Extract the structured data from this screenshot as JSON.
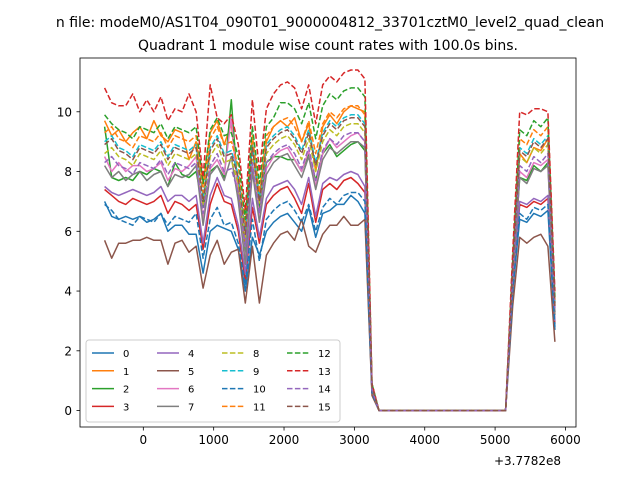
{
  "chart_data": {
    "type": "line",
    "suptitle": "n file: modeM0/AS1T04_090T01_9000004812_33701cztM0_level2_quad_clean",
    "title": "Quadrant 1 module wise count rates with 100.0s bins.",
    "xlabel": "",
    "ylabel": "",
    "x_offset_label": "+3.7782e8",
    "xlim": [
      -900,
      6150
    ],
    "ylim": [
      -0.55,
      11.8
    ],
    "xticks": [
      0,
      1000,
      2000,
      3000,
      4000,
      5000,
      6000
    ],
    "xtick_labels": [
      "0",
      "1000",
      "2000",
      "3000",
      "4000",
      "5000",
      "6000"
    ],
    "yticks": [
      0,
      2,
      4,
      6,
      8,
      10
    ],
    "ytick_labels": [
      "0",
      "2",
      "4",
      "6",
      "8",
      "10"
    ],
    "grid": false,
    "legend_position": "lower-left",
    "legend_columns": 4,
    "x": [
      -550,
      -450,
      -350,
      -250,
      -150,
      -50,
      50,
      150,
      250,
      350,
      450,
      550,
      650,
      750,
      850,
      950,
      1050,
      1150,
      1250,
      1350,
      1450,
      1550,
      1650,
      1750,
      1850,
      1950,
      2050,
      2150,
      2250,
      2350,
      2450,
      2550,
      2650,
      2750,
      2850,
      2950,
      3050,
      3150,
      3250,
      3350,
      3450,
      3550,
      3650,
      3750,
      3850,
      3950,
      4050,
      4150,
      4250,
      4350,
      4450,
      4550,
      4650,
      4750,
      4850,
      4950,
      5050,
      5150,
      5250,
      5350,
      5450,
      5550,
      5650,
      5750,
      5850
    ],
    "series": [
      {
        "name": "0",
        "color": "#1f77b4",
        "dash": "solid",
        "values": [
          7.0,
          6.5,
          6.4,
          6.5,
          6.4,
          6.5,
          6.3,
          6.4,
          6.6,
          6.0,
          6.2,
          6.2,
          5.9,
          5.9,
          4.6,
          6.0,
          6.2,
          6.1,
          6.0,
          5.4,
          4.0,
          5.8,
          5.2,
          6.0,
          6.3,
          6.5,
          6.6,
          6.3,
          6.0,
          6.8,
          5.8,
          6.6,
          6.7,
          6.9,
          6.9,
          7.2,
          7.0,
          6.6,
          0.6,
          0.0,
          0.0,
          0.0,
          0.0,
          0.0,
          0.0,
          0.0,
          0.0,
          0.0,
          0.0,
          0.0,
          0.0,
          0.0,
          0.0,
          0.0,
          0.0,
          0.0,
          0.0,
          0.0,
          4.0,
          6.4,
          6.3,
          6.6,
          6.5,
          6.7,
          2.7
        ]
      },
      {
        "name": "1",
        "color": "#ff7f0e",
        "dash": "solid",
        "values": [
          9.7,
          9.2,
          9.4,
          9.0,
          9.3,
          9.5,
          9.1,
          9.7,
          9.2,
          9.0,
          9.4,
          9.3,
          8.4,
          9.0,
          7.6,
          9.3,
          9.7,
          8.9,
          9.6,
          7.4,
          5.5,
          9.0,
          7.2,
          9.0,
          9.5,
          9.7,
          9.5,
          9.8,
          9.0,
          9.6,
          8.0,
          9.5,
          9.9,
          9.6,
          10.0,
          10.2,
          10.1,
          10.0,
          0.8,
          0.0,
          0.0,
          0.0,
          0.0,
          0.0,
          0.0,
          0.0,
          0.0,
          0.0,
          0.0,
          0.0,
          0.0,
          0.0,
          0.0,
          0.0,
          0.0,
          0.0,
          0.0,
          0.0,
          4.6,
          8.6,
          8.3,
          8.8,
          8.7,
          9.1,
          3.6
        ]
      },
      {
        "name": "2",
        "color": "#2ca02c",
        "dash": "solid",
        "values": [
          9.5,
          7.8,
          7.7,
          7.8,
          7.7,
          8.0,
          7.9,
          8.1,
          8.0,
          7.5,
          8.3,
          7.9,
          7.8,
          8.0,
          6.8,
          8.0,
          8.2,
          7.8,
          10.4,
          7.2,
          5.2,
          8.1,
          6.8,
          8.3,
          8.5,
          8.5,
          8.4,
          8.4,
          8.0,
          8.6,
          7.7,
          8.6,
          8.9,
          8.5,
          8.7,
          8.9,
          9.0,
          8.7,
          0.7,
          0.0,
          0.0,
          0.0,
          0.0,
          0.0,
          0.0,
          0.0,
          0.0,
          0.0,
          0.0,
          0.0,
          0.0,
          0.0,
          0.0,
          0.0,
          0.0,
          0.0,
          0.0,
          0.0,
          4.4,
          7.8,
          7.7,
          8.2,
          8.0,
          8.3,
          3.3
        ]
      },
      {
        "name": "3",
        "color": "#d62728",
        "dash": "solid",
        "values": [
          7.4,
          7.2,
          7.0,
          6.9,
          7.1,
          7.0,
          6.9,
          7.0,
          7.2,
          6.6,
          7.0,
          6.9,
          6.7,
          6.9,
          5.4,
          6.9,
          7.6,
          7.0,
          6.9,
          6.0,
          4.3,
          6.8,
          5.6,
          6.9,
          7.2,
          7.4,
          7.5,
          7.1,
          6.6,
          7.6,
          6.3,
          7.4,
          7.6,
          7.4,
          7.7,
          7.8,
          7.6,
          7.3,
          0.6,
          0.0,
          0.0,
          0.0,
          0.0,
          0.0,
          0.0,
          0.0,
          0.0,
          0.0,
          0.0,
          0.0,
          0.0,
          0.0,
          0.0,
          0.0,
          0.0,
          0.0,
          0.0,
          0.0,
          4.1,
          6.9,
          6.8,
          7.0,
          6.9,
          7.1,
          2.9
        ]
      },
      {
        "name": "4",
        "color": "#9467bd",
        "dash": "solid",
        "values": [
          7.5,
          7.3,
          7.2,
          7.3,
          7.4,
          7.3,
          7.2,
          7.3,
          7.5,
          7.0,
          7.2,
          7.2,
          7.0,
          7.2,
          5.6,
          7.2,
          7.8,
          7.2,
          7.1,
          6.2,
          4.6,
          7.1,
          5.8,
          7.1,
          7.5,
          7.6,
          7.7,
          7.4,
          6.9,
          7.8,
          6.5,
          7.6,
          7.8,
          7.7,
          7.9,
          8.0,
          7.9,
          7.5,
          0.6,
          0.0,
          0.0,
          0.0,
          0.0,
          0.0,
          0.0,
          0.0,
          0.0,
          0.0,
          0.0,
          0.0,
          0.0,
          0.0,
          0.0,
          0.0,
          0.0,
          0.0,
          0.0,
          0.0,
          4.2,
          7.0,
          6.9,
          7.1,
          7.0,
          7.2,
          3.0
        ]
      },
      {
        "name": "5",
        "color": "#8c564b",
        "dash": "solid",
        "values": [
          5.7,
          5.1,
          5.6,
          5.6,
          5.7,
          5.7,
          5.8,
          5.7,
          5.7,
          4.9,
          5.6,
          5.7,
          5.3,
          5.5,
          4.1,
          5.2,
          5.7,
          4.9,
          5.3,
          5.4,
          3.6,
          5.5,
          3.6,
          5.2,
          5.6,
          5.9,
          6.0,
          5.7,
          6.4,
          5.5,
          5.3,
          5.9,
          6.2,
          6.2,
          6.5,
          6.2,
          6.2,
          6.4,
          0.5,
          0.0,
          0.0,
          0.0,
          0.0,
          0.0,
          0.0,
          0.0,
          0.0,
          0.0,
          0.0,
          0.0,
          0.0,
          0.0,
          0.0,
          0.0,
          0.0,
          0.0,
          0.0,
          0.0,
          3.5,
          5.8,
          5.6,
          5.8,
          5.9,
          5.5,
          2.3
        ]
      },
      {
        "name": "6",
        "color": "#e377c2",
        "dash": "solid",
        "values": [
          8.5,
          8.0,
          8.3,
          8.0,
          8.2,
          8.2,
          8.0,
          8.1,
          8.3,
          7.7,
          8.1,
          8.0,
          8.2,
          8.5,
          6.4,
          8.1,
          8.4,
          7.9,
          9.8,
          7.1,
          5.0,
          8.3,
          6.5,
          8.1,
          8.5,
          8.7,
          8.8,
          8.4,
          8.0,
          8.7,
          7.5,
          8.6,
          9.1,
          8.8,
          9.0,
          9.2,
          9.3,
          9.0,
          0.7,
          0.0,
          0.0,
          0.0,
          0.0,
          0.0,
          0.0,
          0.0,
          0.0,
          0.0,
          0.0,
          0.0,
          0.0,
          0.0,
          0.0,
          0.0,
          0.0,
          0.0,
          0.0,
          0.0,
          4.4,
          8.0,
          7.8,
          8.3,
          8.2,
          8.4,
          3.3
        ]
      },
      {
        "name": "7",
        "color": "#7f7f7f",
        "dash": "solid",
        "values": [
          8.2,
          7.8,
          8.0,
          7.7,
          7.9,
          8.0,
          7.7,
          7.9,
          8.0,
          7.5,
          7.9,
          7.8,
          7.9,
          8.2,
          6.2,
          7.9,
          8.2,
          7.7,
          8.5,
          7.0,
          4.9,
          8.0,
          6.3,
          7.9,
          8.3,
          8.5,
          8.6,
          8.2,
          7.8,
          8.5,
          7.4,
          8.4,
          8.8,
          8.6,
          8.8,
          9.0,
          9.0,
          8.8,
          0.7,
          0.0,
          0.0,
          0.0,
          0.0,
          0.0,
          0.0,
          0.0,
          0.0,
          0.0,
          0.0,
          0.0,
          0.0,
          0.0,
          0.0,
          0.0,
          0.0,
          0.0,
          0.0,
          0.0,
          4.3,
          7.8,
          7.6,
          8.1,
          8.0,
          8.2,
          3.2
        ]
      },
      {
        "name": "8",
        "color": "#bcbd22",
        "dash": "dashed",
        "values": [
          8.6,
          8.8,
          8.5,
          8.4,
          8.2,
          8.6,
          8.5,
          8.4,
          8.7,
          8.2,
          8.6,
          8.5,
          8.4,
          8.6,
          6.9,
          8.5,
          8.9,
          8.3,
          8.4,
          7.6,
          5.8,
          8.6,
          6.9,
          8.6,
          8.9,
          9.1,
          9.2,
          8.9,
          8.4,
          9.1,
          8.0,
          9.0,
          9.4,
          9.2,
          9.5,
          9.6,
          9.6,
          9.3,
          0.8,
          0.0,
          0.0,
          0.0,
          0.0,
          0.0,
          0.0,
          0.0,
          0.0,
          0.0,
          0.0,
          0.0,
          0.0,
          0.0,
          0.0,
          0.0,
          0.0,
          0.0,
          0.0,
          0.0,
          4.6,
          8.5,
          8.3,
          8.8,
          8.6,
          8.9,
          3.5
        ]
      },
      {
        "name": "9",
        "color": "#17becf",
        "dash": "dashed",
        "values": [
          9.0,
          9.2,
          8.8,
          8.7,
          8.5,
          8.9,
          8.8,
          8.7,
          9.0,
          8.5,
          8.9,
          8.8,
          8.7,
          8.9,
          7.1,
          8.8,
          9.2,
          8.6,
          8.7,
          7.9,
          6.0,
          8.9,
          7.1,
          8.9,
          9.2,
          9.4,
          9.5,
          9.2,
          8.7,
          9.4,
          8.3,
          9.3,
          9.7,
          9.5,
          9.8,
          9.9,
          9.9,
          9.6,
          0.8,
          0.0,
          0.0,
          0.0,
          0.0,
          0.0,
          0.0,
          0.0,
          0.0,
          0.0,
          0.0,
          0.0,
          0.0,
          0.0,
          0.0,
          0.0,
          0.0,
          0.0,
          0.0,
          0.0,
          4.7,
          8.8,
          8.6,
          9.1,
          8.9,
          9.2,
          3.6
        ]
      },
      {
        "name": "10",
        "color": "#1f77b4",
        "dash": "dashed",
        "values": [
          6.9,
          6.7,
          6.4,
          6.3,
          6.2,
          6.5,
          6.4,
          6.3,
          6.6,
          6.2,
          6.5,
          6.4,
          6.3,
          6.6,
          5.1,
          6.4,
          6.8,
          6.2,
          6.3,
          5.6,
          4.2,
          6.4,
          5.0,
          6.4,
          6.7,
          6.9,
          7.0,
          6.7,
          6.3,
          6.9,
          6.0,
          6.8,
          7.1,
          6.9,
          7.2,
          7.3,
          7.3,
          7.0,
          0.6,
          0.0,
          0.0,
          0.0,
          0.0,
          0.0,
          0.0,
          0.0,
          0.0,
          0.0,
          0.0,
          0.0,
          0.0,
          0.0,
          0.0,
          0.0,
          0.0,
          0.0,
          0.0,
          0.0,
          4.0,
          6.6,
          6.4,
          6.8,
          6.7,
          6.9,
          2.8
        ]
      },
      {
        "name": "11",
        "color": "#ff7f0e",
        "dash": "dashed",
        "values": [
          9.3,
          9.5,
          9.1,
          9.0,
          8.8,
          9.2,
          9.1,
          9.0,
          9.3,
          8.8,
          9.2,
          9.1,
          9.0,
          9.2,
          7.3,
          9.1,
          9.5,
          8.9,
          9.0,
          8.2,
          6.2,
          9.2,
          7.3,
          9.2,
          9.5,
          9.7,
          9.8,
          9.5,
          9.0,
          9.7,
          8.6,
          9.6,
          10.0,
          9.8,
          10.1,
          10.2,
          10.2,
          9.9,
          0.8,
          0.0,
          0.0,
          0.0,
          0.0,
          0.0,
          0.0,
          0.0,
          0.0,
          0.0,
          0.0,
          0.0,
          0.0,
          0.0,
          0.0,
          0.0,
          0.0,
          0.0,
          0.0,
          0.0,
          4.8,
          9.1,
          8.9,
          9.4,
          9.2,
          9.5,
          3.7
        ]
      },
      {
        "name": "12",
        "color": "#2ca02c",
        "dash": "dashed",
        "values": [
          9.9,
          9.6,
          9.4,
          9.3,
          9.1,
          9.5,
          9.4,
          9.3,
          9.6,
          9.1,
          9.5,
          9.4,
          9.3,
          9.5,
          7.6,
          9.4,
          9.8,
          9.2,
          9.3,
          8.5,
          6.4,
          9.5,
          7.6,
          9.5,
          9.8,
          10.3,
          10.3,
          10.1,
          9.6,
          10.3,
          9.1,
          10.2,
          10.6,
          10.4,
          10.7,
          10.8,
          10.8,
          10.5,
          0.9,
          0.0,
          0.0,
          0.0,
          0.0,
          0.0,
          0.0,
          0.0,
          0.0,
          0.0,
          0.0,
          0.0,
          0.0,
          0.0,
          0.0,
          0.0,
          0.0,
          0.0,
          0.0,
          0.0,
          5.0,
          9.4,
          9.2,
          9.7,
          9.5,
          9.8,
          3.8
        ]
      },
      {
        "name": "13",
        "color": "#d62728",
        "dash": "dashed",
        "values": [
          10.8,
          10.3,
          10.2,
          10.2,
          10.6,
          10.0,
          10.4,
          10.0,
          10.5,
          9.7,
          10.1,
          10.0,
          10.6,
          10.0,
          7.8,
          10.9,
          9.8,
          9.6,
          9.9,
          8.9,
          6.7,
          10.4,
          8.0,
          10.1,
          10.6,
          10.9,
          11.0,
          10.8,
          10.1,
          10.9,
          9.6,
          10.9,
          11.2,
          11.0,
          11.3,
          11.4,
          11.4,
          11.1,
          0.9,
          0.0,
          0.0,
          0.0,
          0.0,
          0.0,
          0.0,
          0.0,
          0.0,
          0.0,
          0.0,
          0.0,
          0.0,
          0.0,
          0.0,
          0.0,
          0.0,
          0.0,
          0.0,
          0.0,
          5.3,
          10.0,
          9.9,
          10.1,
          10.1,
          10.0,
          4.0
        ]
      },
      {
        "name": "14",
        "color": "#9467bd",
        "dash": "dashed",
        "values": [
          8.3,
          8.5,
          8.2,
          8.1,
          7.9,
          8.3,
          8.2,
          8.1,
          8.4,
          7.9,
          8.3,
          8.2,
          8.1,
          8.3,
          6.6,
          8.2,
          8.6,
          8.0,
          8.1,
          7.3,
          5.5,
          8.3,
          6.6,
          8.3,
          8.6,
          8.8,
          8.9,
          8.6,
          8.1,
          8.8,
          7.7,
          8.7,
          9.1,
          8.9,
          9.2,
          9.3,
          9.3,
          9.0,
          0.7,
          0.0,
          0.0,
          0.0,
          0.0,
          0.0,
          0.0,
          0.0,
          0.0,
          0.0,
          0.0,
          0.0,
          0.0,
          0.0,
          0.0,
          0.0,
          0.0,
          0.0,
          0.0,
          0.0,
          4.5,
          8.2,
          8.0,
          8.5,
          8.3,
          8.6,
          3.4
        ]
      },
      {
        "name": "15",
        "color": "#8c564b",
        "dash": "dashed",
        "values": [
          8.9,
          9.1,
          8.7,
          8.6,
          8.4,
          8.8,
          8.7,
          8.6,
          8.9,
          8.4,
          8.8,
          8.7,
          8.6,
          8.8,
          7.0,
          8.7,
          9.1,
          8.5,
          8.6,
          7.8,
          5.9,
          8.8,
          7.0,
          8.8,
          9.1,
          9.3,
          9.4,
          9.1,
          8.6,
          9.3,
          8.2,
          9.2,
          9.6,
          9.4,
          9.7,
          9.8,
          9.8,
          9.5,
          0.8,
          0.0,
          0.0,
          0.0,
          0.0,
          0.0,
          0.0,
          0.0,
          0.0,
          0.0,
          0.0,
          0.0,
          0.0,
          0.0,
          0.0,
          0.0,
          0.0,
          0.0,
          0.0,
          0.0,
          4.7,
          8.7,
          8.5,
          9.0,
          8.8,
          9.1,
          3.5
        ]
      }
    ]
  }
}
